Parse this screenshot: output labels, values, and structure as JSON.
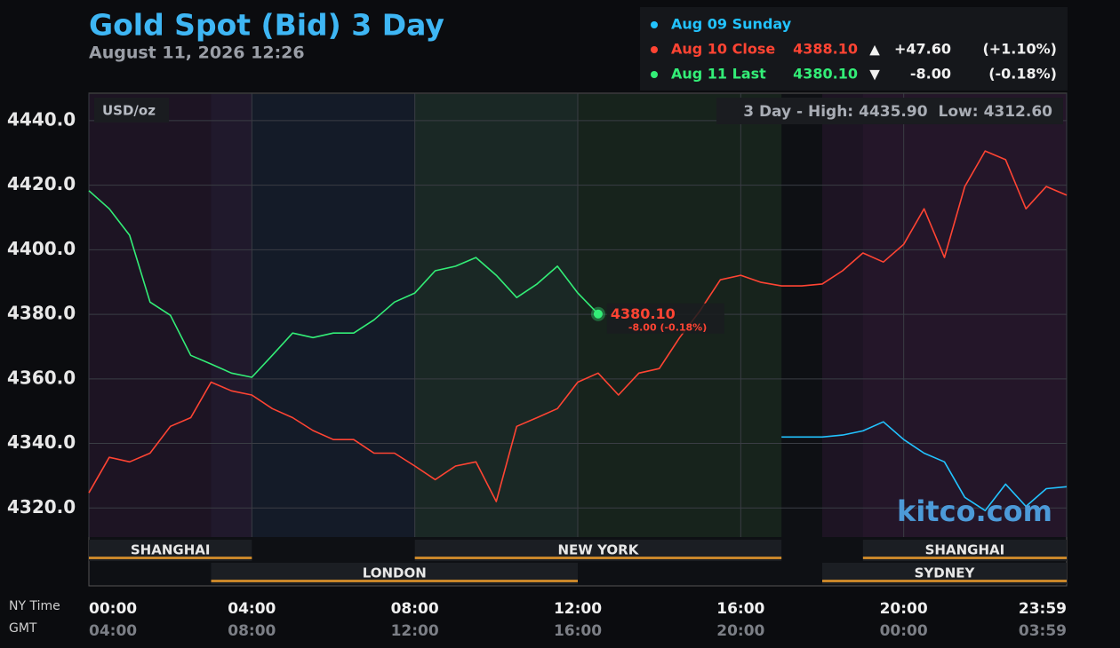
{
  "chart_data": {
    "type": "line",
    "title": "Gold Spot (Bid) 3 Day",
    "subtitle": "August 11, 2026 12:26",
    "unit_label": "USD/oz",
    "range_text": {
      "high_text": "3 Day - High:",
      "high": {
        "value": 4435.9,
        "label": "4435.90"
      },
      "low_text": "Low:",
      "low": {
        "value": 4312.6,
        "label": "4312.60"
      }
    },
    "watermark": "kitco.com",
    "last_label": {
      "price": "4380.10",
      "change": "-8.00 (-0.18%)"
    },
    "x_axis_labels": [
      "NY Time",
      "GMT"
    ],
    "xlim": [
      0,
      24
    ],
    "xticks": [
      {
        "value": 0,
        "label": "00:00"
      },
      {
        "value": 4,
        "label": "04:00"
      },
      {
        "value": 8,
        "label": "08:00"
      },
      {
        "value": 12,
        "label": "12:00"
      },
      {
        "value": 16,
        "label": "16:00"
      },
      {
        "value": 20,
        "label": "20:00"
      },
      {
        "value": 24,
        "label": "23:59"
      }
    ],
    "x2ticks": [
      {
        "value": 0,
        "label": "04:00"
      },
      {
        "value": 4,
        "label": "08:00"
      },
      {
        "value": 8,
        "label": "12:00"
      },
      {
        "value": 12,
        "label": "16:00"
      },
      {
        "value": 16,
        "label": "20:00"
      },
      {
        "value": 20,
        "label": "00:00"
      },
      {
        "value": 24,
        "label": "03:59"
      }
    ],
    "ylim": [
      4311,
      4448.5
    ],
    "yticks": [
      {
        "value": 4320,
        "label": "4320.0"
      },
      {
        "value": 4340,
        "label": "4340.0"
      },
      {
        "value": 4360,
        "label": "4360.0"
      },
      {
        "value": 4380,
        "label": "4380.0"
      },
      {
        "value": 4400,
        "label": "4400.0"
      },
      {
        "value": 4420,
        "label": "4420.0"
      },
      {
        "value": 4440,
        "label": "4440.0"
      }
    ],
    "grid": true,
    "sessions": [
      [
        {
          "name": "SHANGHAI",
          "start": 0,
          "end": 4,
          "color": "#2a1830"
        },
        {
          "name": "NEW YORK",
          "start": 8,
          "end": 17,
          "color": "#1f3322"
        },
        {
          "name": "SHANGHAI",
          "start": 19,
          "end": 24,
          "color": "#2a1830"
        }
      ],
      [
        {
          "name": "LONDON",
          "start": 3,
          "end": 12,
          "color": "#1a2438"
        },
        {
          "name": "SYDNEY",
          "start": 18,
          "end": 24,
          "color": "#2a1830"
        }
      ]
    ],
    "x": [
      0,
      0.5,
      1,
      1.5,
      2,
      2.5,
      3,
      3.5,
      4,
      4.5,
      5,
      5.5,
      6,
      6.5,
      7,
      7.5,
      8,
      8.5,
      9,
      9.5,
      10,
      10.5,
      11,
      11.5,
      12,
      12.5,
      13,
      13.5,
      14,
      14.5,
      15,
      15.5,
      16,
      16.5,
      17,
      17.5,
      18,
      18.5,
      19,
      19.5,
      20,
      20.5,
      21,
      21.5,
      22,
      22.5,
      23,
      23.5,
      24
    ],
    "series": [
      {
        "name": "Aug 09 Sunday",
        "color": "#22c3ff",
        "values": [
          null,
          null,
          null,
          null,
          null,
          null,
          null,
          null,
          null,
          null,
          null,
          null,
          null,
          null,
          null,
          null,
          null,
          null,
          null,
          null,
          null,
          null,
          null,
          null,
          null,
          null,
          null,
          null,
          null,
          null,
          null,
          null,
          null,
          null,
          4342.0,
          4342.0,
          4342.0,
          4342.6,
          4343.9,
          4346.7,
          4341.2,
          4337.0,
          4334.3,
          4323.3,
          4319.2,
          4327.4,
          4320.5,
          4326.0,
          4326.6
        ]
      },
      {
        "name": "Aug 10 Close",
        "color": "#ff4433",
        "price": {
          "value": 4388.1,
          "label": "4388.10"
        },
        "arrow": "▲",
        "change": {
          "value": 47.6,
          "label": "+47.60"
        },
        "pct": {
          "value": 1.1,
          "label": "(+1.10%)"
        },
        "values": [
          4324.7,
          4335.7,
          4334.3,
          4337,
          4345.3,
          4348,
          4359,
          4356.3,
          4355,
          4350.8,
          4348,
          4344,
          4341.2,
          4341.2,
          4337,
          4337,
          4333,
          4328.8,
          4333,
          4334.3,
          4322,
          4345.3,
          4348,
          4350.8,
          4359,
          4361.8,
          4355,
          4361.8,
          4363.2,
          4372.8,
          4381.1,
          4390.7,
          4392.1,
          4389.9,
          4388.8,
          4388.8,
          4389.4,
          4393.5,
          4399,
          4396.2,
          4401.7,
          4412.7,
          4397.6,
          4419.6,
          4430.6,
          4427.9,
          4412.7,
          4419.6,
          4416.9
        ]
      },
      {
        "name": "Aug 11 Last",
        "color": "#33ee77",
        "price": {
          "value": 4380.1,
          "label": "4380.10"
        },
        "arrow": "▼",
        "change": {
          "value": -8,
          "label": "-8.00"
        },
        "pct": {
          "value": -0.18,
          "label": "(-0.18%)"
        },
        "values": [
          4418.3,
          4412.7,
          4404.5,
          4383.8,
          4379.7,
          4367.3,
          4364.6,
          4361.8,
          4360.5,
          4367.3,
          4374.2,
          4372.8,
          4374.2,
          4374.2,
          4378.3,
          4383.8,
          4386.6,
          4393.5,
          4394.9,
          4397.6,
          4392.1,
          4385.2,
          4389.4,
          4394.9,
          4386.6,
          4380.1,
          null,
          null,
          null,
          null,
          null,
          null,
          null,
          null,
          null,
          null,
          null,
          null,
          null,
          null,
          null,
          null,
          null,
          null,
          null,
          null,
          null,
          null,
          null
        ]
      }
    ]
  }
}
